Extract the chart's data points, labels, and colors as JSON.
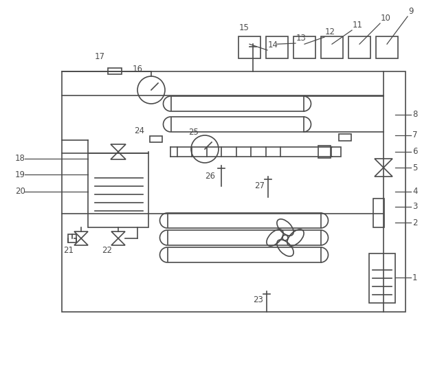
{
  "bg_color": "#ffffff",
  "line_color": "#4a4a4a",
  "text_color": "#4a4a4a",
  "fig_width": 6.3,
  "fig_height": 5.59,
  "dpi": 100
}
